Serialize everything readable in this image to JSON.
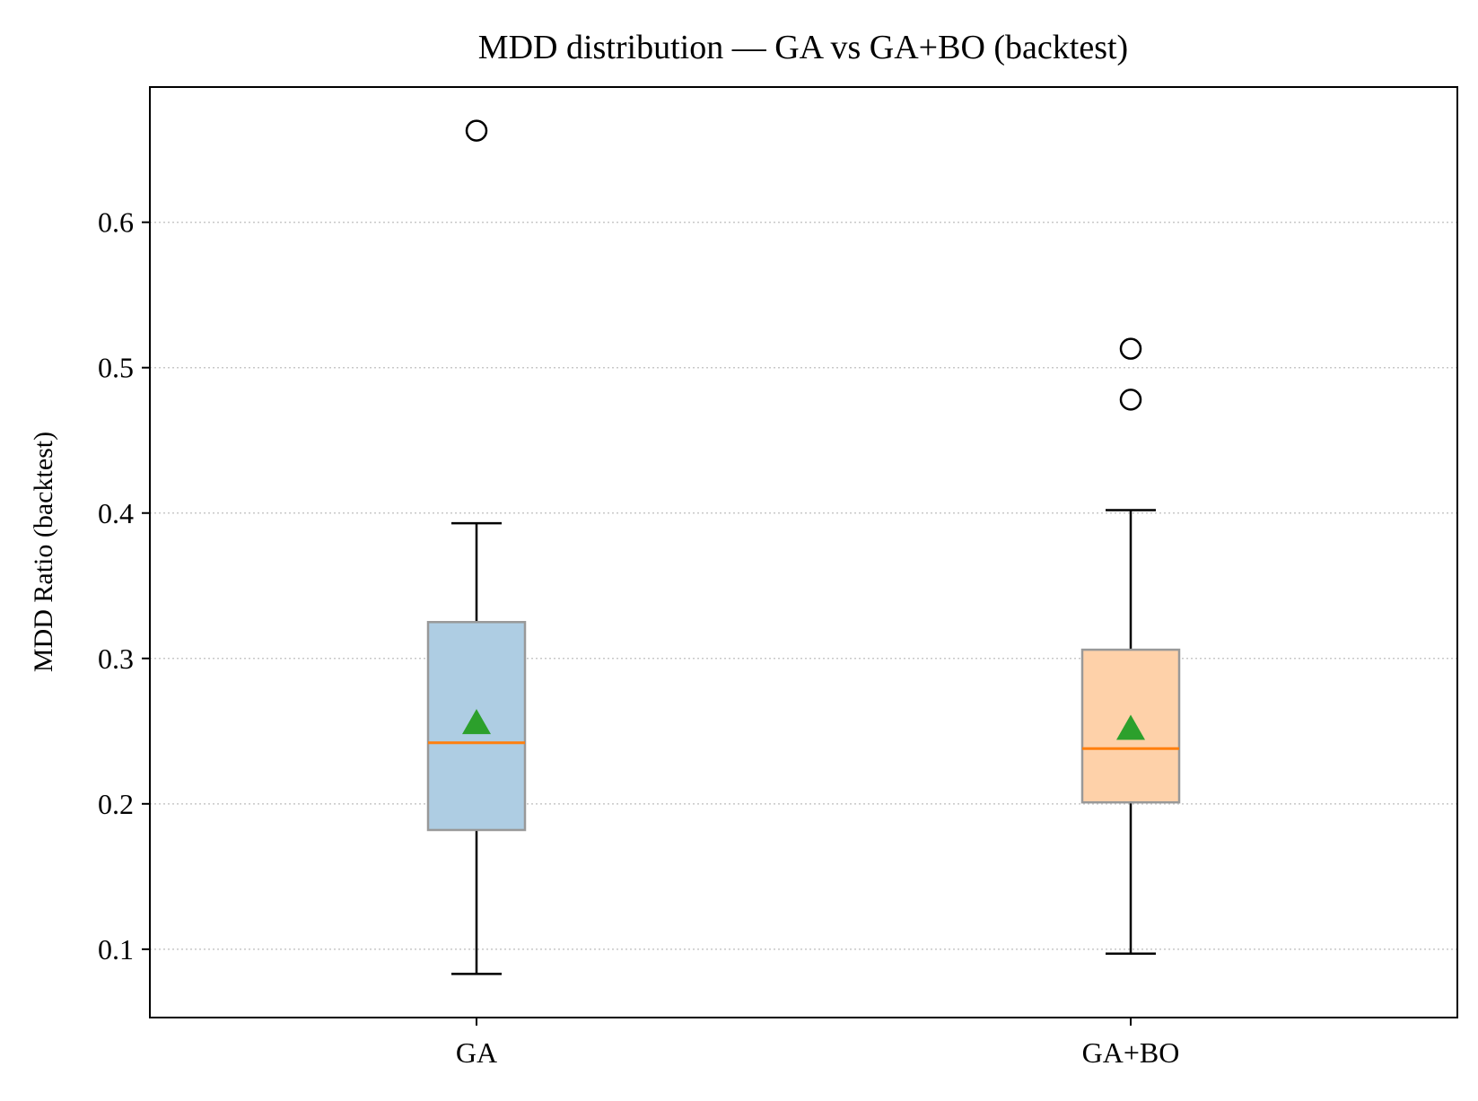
{
  "chart_data": {
    "type": "box",
    "title": "MDD distribution — GA vs GA+BO (backtest)",
    "xlabel": "",
    "ylabel": "MDD Ratio (backtest)",
    "ylim": [
      0.053,
      0.693
    ],
    "yticks": [
      0.1,
      0.2,
      0.3,
      0.4,
      0.5,
      0.6
    ],
    "grid": "y-dotted",
    "categories": [
      "GA",
      "GA+BO"
    ],
    "series": [
      {
        "category": "GA",
        "whisker_low": 0.083,
        "q1": 0.182,
        "median": 0.242,
        "q3": 0.325,
        "whisker_high": 0.393,
        "mean": 0.256,
        "outliers": [
          0.663
        ],
        "color": "#aecde3"
      },
      {
        "category": "GA+BO",
        "whisker_low": 0.097,
        "q1": 0.201,
        "median": 0.238,
        "q3": 0.306,
        "whisker_high": 0.402,
        "mean": 0.252,
        "outliers": [
          0.513,
          0.478
        ],
        "color": "#fed1a9"
      }
    ],
    "colors": {
      "median": "#ff7f0e",
      "mean_marker": "#2ca02c",
      "box_edge": "#999999"
    }
  }
}
